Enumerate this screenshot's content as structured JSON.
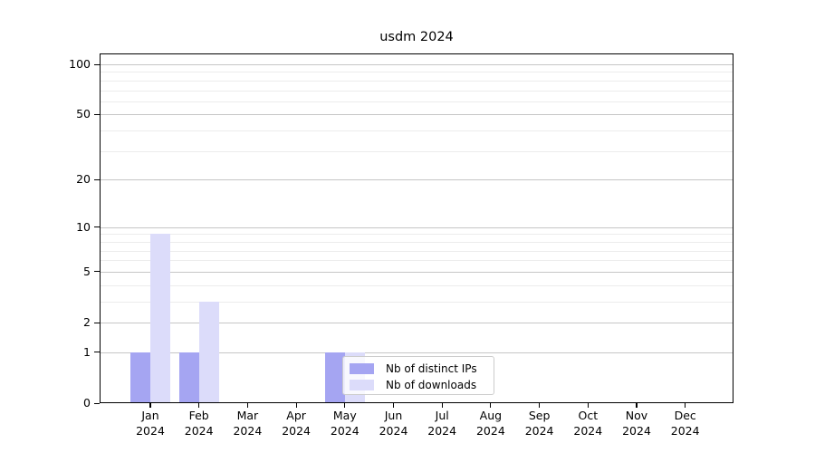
{
  "chart_data": {
    "type": "bar",
    "title": "usdm 2024",
    "x_categories": [
      {
        "month": "Jan",
        "year": "2024"
      },
      {
        "month": "Feb",
        "year": "2024"
      },
      {
        "month": "Mar",
        "year": "2024"
      },
      {
        "month": "Apr",
        "year": "2024"
      },
      {
        "month": "May",
        "year": "2024"
      },
      {
        "month": "Jun",
        "year": "2024"
      },
      {
        "month": "Jul",
        "year": "2024"
      },
      {
        "month": "Aug",
        "year": "2024"
      },
      {
        "month": "Sep",
        "year": "2024"
      },
      {
        "month": "Oct",
        "year": "2024"
      },
      {
        "month": "Nov",
        "year": "2024"
      },
      {
        "month": "Dec",
        "year": "2024"
      }
    ],
    "series": [
      {
        "name": "Nb of distinct IPs",
        "color": "#a5a5f2",
        "values": [
          1,
          1,
          0,
          0,
          1,
          0,
          0,
          0,
          0,
          0,
          0,
          0
        ]
      },
      {
        "name": "Nb of downloads",
        "color": "#dcdcfa",
        "values": [
          9,
          3,
          0,
          0,
          1,
          0,
          0,
          0,
          0,
          0,
          0,
          0
        ]
      }
    ],
    "y_axis": {
      "scale": "log1p",
      "ylim": [
        0,
        100
      ],
      "major_ticks": [
        0,
        1,
        2,
        5,
        10,
        20,
        50,
        100
      ],
      "minor_gridlines": [
        3,
        4,
        6,
        7,
        8,
        9,
        30,
        40,
        60,
        70,
        80,
        90
      ]
    },
    "grid": "on",
    "legend_position": "lower center inside plot",
    "colors": {
      "background": "#ffffff",
      "axis": "#000000",
      "text": "#000000",
      "major_grid": "#c6c6c6",
      "minor_grid": "#ececec",
      "distinct_ips_bar": "#a5a5f2",
      "downloads_bar": "#dcdcfa"
    }
  }
}
